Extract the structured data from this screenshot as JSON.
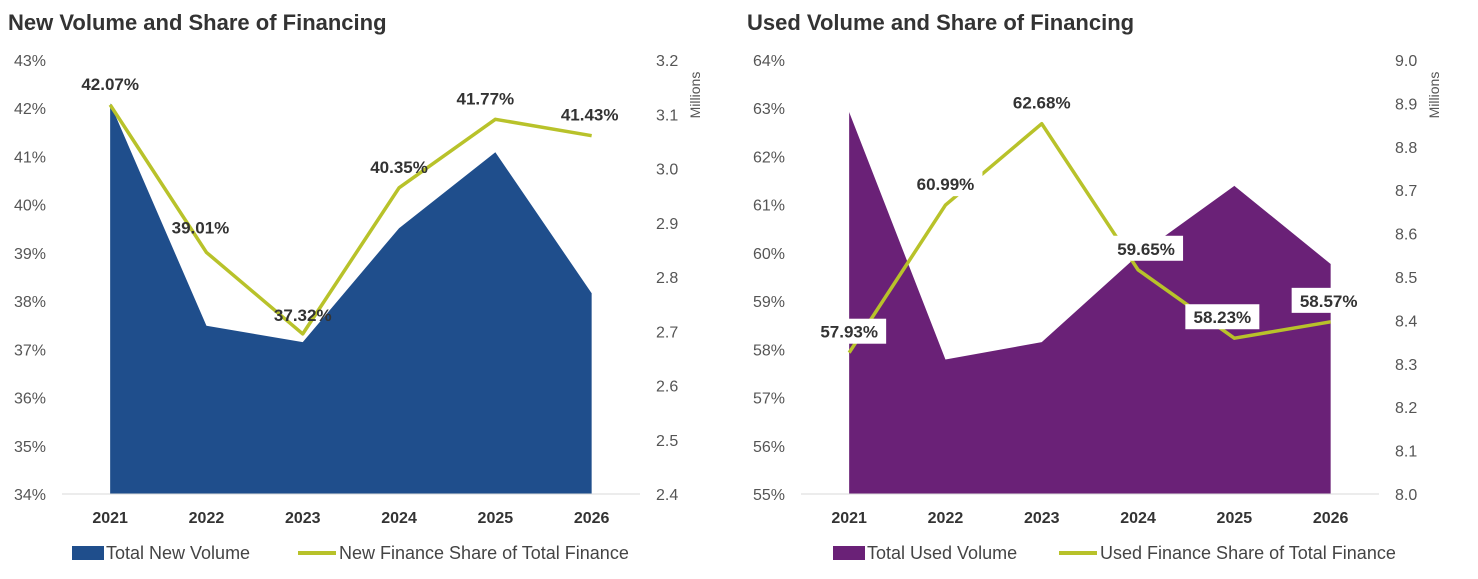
{
  "chart_data": [
    {
      "type": "area+line",
      "title": "New Volume and Share of Financing",
      "categories": [
        "2021",
        "2022",
        "2023",
        "2024",
        "2025",
        "2026"
      ],
      "left_axis": {
        "ticks": [
          "34%",
          "35%",
          "36%",
          "37%",
          "38%",
          "39%",
          "40%",
          "41%",
          "42%",
          "43%"
        ],
        "range": [
          34,
          43
        ]
      },
      "right_axis": {
        "unit": "Millions",
        "ticks": [
          "2.4",
          "2.5",
          "2.6",
          "2.7",
          "2.8",
          "2.9",
          "3.0",
          "3.1",
          "3.2"
        ],
        "range": [
          2.4,
          3.2
        ]
      },
      "series": [
        {
          "name": "Total New Volume",
          "kind": "area",
          "axis": "right",
          "color": "#1f4e8c",
          "values": [
            3.12,
            2.71,
            2.68,
            2.89,
            3.03,
            2.77
          ]
        },
        {
          "name": "New Finance Share of Total Finance",
          "kind": "line",
          "axis": "left",
          "color": "#b8c22a",
          "values": [
            42.07,
            39.01,
            37.32,
            40.35,
            41.77,
            41.43
          ],
          "labels": [
            "42.07%",
            "39.01%",
            "37.32%",
            "40.35%",
            "41.77%",
            "41.43%"
          ]
        }
      ],
      "legend_position": "bottom"
    },
    {
      "type": "area+line",
      "title": "Used Volume and Share of Financing",
      "categories": [
        "2021",
        "2022",
        "2023",
        "2024",
        "2025",
        "2026"
      ],
      "left_axis": {
        "ticks": [
          "55%",
          "56%",
          "57%",
          "58%",
          "59%",
          "60%",
          "61%",
          "62%",
          "63%",
          "64%"
        ],
        "range": [
          55,
          64
        ]
      },
      "right_axis": {
        "unit": "Millions",
        "ticks": [
          "8.0",
          "8.1",
          "8.2",
          "8.3",
          "8.4",
          "8.5",
          "8.6",
          "8.7",
          "8.8",
          "8.9",
          "9.0"
        ],
        "range": [
          8.0,
          9.0
        ]
      },
      "series": [
        {
          "name": "Total Used Volume",
          "kind": "area",
          "axis": "right",
          "color": "#6a2177",
          "values": [
            8.88,
            8.31,
            8.35,
            8.55,
            8.71,
            8.53
          ]
        },
        {
          "name": "Used Finance Share of Total Finance",
          "kind": "line",
          "axis": "left",
          "color": "#b8c22a",
          "values": [
            57.93,
            60.99,
            62.68,
            59.65,
            58.23,
            58.57
          ],
          "labels": [
            "57.93%",
            "60.99%",
            "62.68%",
            "59.65%",
            "58.23%",
            "58.57%"
          ]
        }
      ],
      "legend_position": "bottom"
    }
  ]
}
